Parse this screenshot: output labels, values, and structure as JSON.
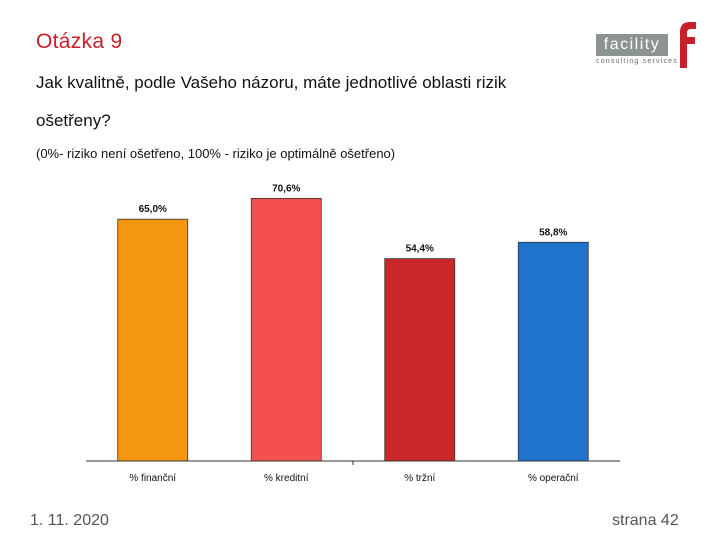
{
  "slide": {
    "title": "Otázka 9",
    "question": "Jak kvalitně, podle Vašeho názoru, máte jednotlivé oblasti rizik ošetřeny?",
    "note": "(0%- riziko není ošetřeno, 100% - riziko je optimálně ošetřeno)"
  },
  "logo": {
    "name": "facility",
    "tagline": "consulting services",
    "letter_mark": "f",
    "colors": {
      "box": "#8c9393",
      "letter": "#c8202a"
    }
  },
  "footer": {
    "date": "1. 11. 2020",
    "page": "strana 42"
  },
  "chart_data": {
    "type": "bar",
    "title": "",
    "xlabel": "",
    "ylabel": "",
    "ylim": [
      0,
      75
    ],
    "grid": false,
    "categories": [
      "% finanční",
      "% kreditní",
      "% tržní",
      "% operační"
    ],
    "values": [
      65.0,
      70.6,
      54.4,
      58.8
    ],
    "value_labels": [
      "65,0%",
      "70,6%",
      "54,4%",
      "58,8%"
    ],
    "colors": [
      "#f5960f",
      "#f55050",
      "#c8282a",
      "#1f73cc"
    ]
  }
}
